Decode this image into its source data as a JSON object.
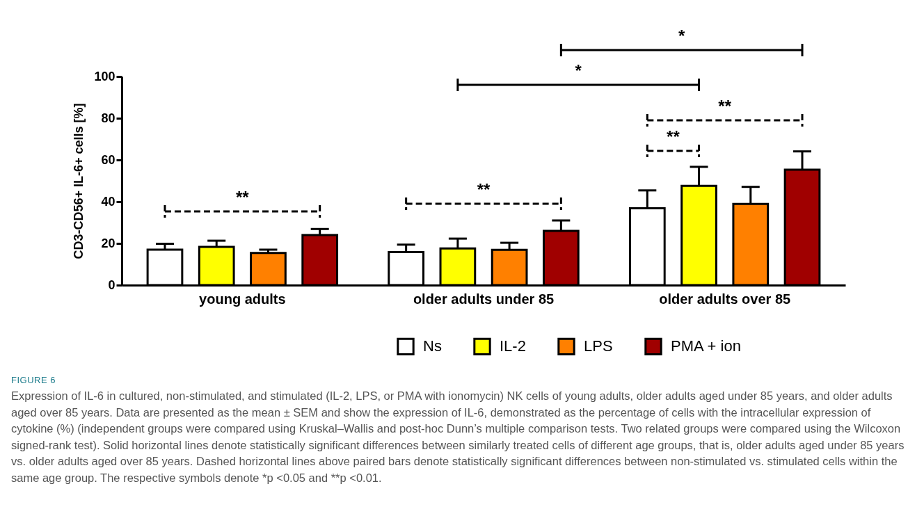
{
  "chart_data": {
    "type": "bar",
    "ylabel": "CD3-CD56+ IL-6+ cells [%]",
    "categories": [
      "young adults",
      "older adults under 85",
      "older adults over 85"
    ],
    "ylim": [
      0,
      100
    ],
    "yticks": [
      0,
      20,
      40,
      60,
      80,
      100
    ],
    "legend": "bottom",
    "series": [
      {
        "name": "Ns",
        "color": "#ffffff",
        "values": [
          17,
          15.8,
          36.8
        ],
        "errors": [
          [
            17,
            19.8
          ],
          [
            15.8,
            19.4
          ],
          [
            36.8,
            45.4
          ]
        ]
      },
      {
        "name": "IL-2",
        "color": "#ffff00",
        "values": [
          18.3,
          17.6,
          47.6
        ],
        "errors": [
          [
            18.3,
            21.3
          ],
          [
            17.6,
            22.3
          ],
          [
            47.6,
            56.7
          ]
        ]
      },
      {
        "name": "LPS",
        "color": "#ff8000",
        "values": [
          15.4,
          16.9,
          38.9
        ],
        "errors": [
          [
            15.4,
            17
          ],
          [
            16.9,
            20.3
          ],
          [
            38.9,
            47.1
          ]
        ]
      },
      {
        "name": "PMA + ion",
        "color": "#a00000",
        "values": [
          24,
          26,
          55.3
        ],
        "errors": [
          [
            24,
            26.9
          ],
          [
            26,
            31
          ],
          [
            55.3,
            64.1
          ]
        ]
      }
    ],
    "annotations": [
      "*",
      "*",
      "**",
      "**",
      "**",
      "**",
      "FIGURE 6",
      "Expression of IL-6 in cultured, non-stimulated, and stimulated (IL-2, LPS, or PMA with ionomycin) NK cells of young adults, older adults aged under 85 years, and older adults aged over 85 years. Data are presented as the mean ± SEM and show the expression of IL-6, demonstrated as the percentage of cells with the intracellular expression of cytokine (%) (independent groups were compared using Kruskal–Wallis and post-hoc Dunn’s multiple comparison tests. Two related groups were compared using the Wilcoxon signed-rank test). Solid horizontal lines denote statistically significant differences between similarly treated cells of different age groups, that is, older adults aged under 85 years vs. older adults aged over 85 years. Dashed horizontal lines above paired bars denote statistically significant differences between non-stimulated vs. stimulated cells within the same age group. The respective symbols denote *p <0.05 and **p <0.01."
    ]
  }
}
